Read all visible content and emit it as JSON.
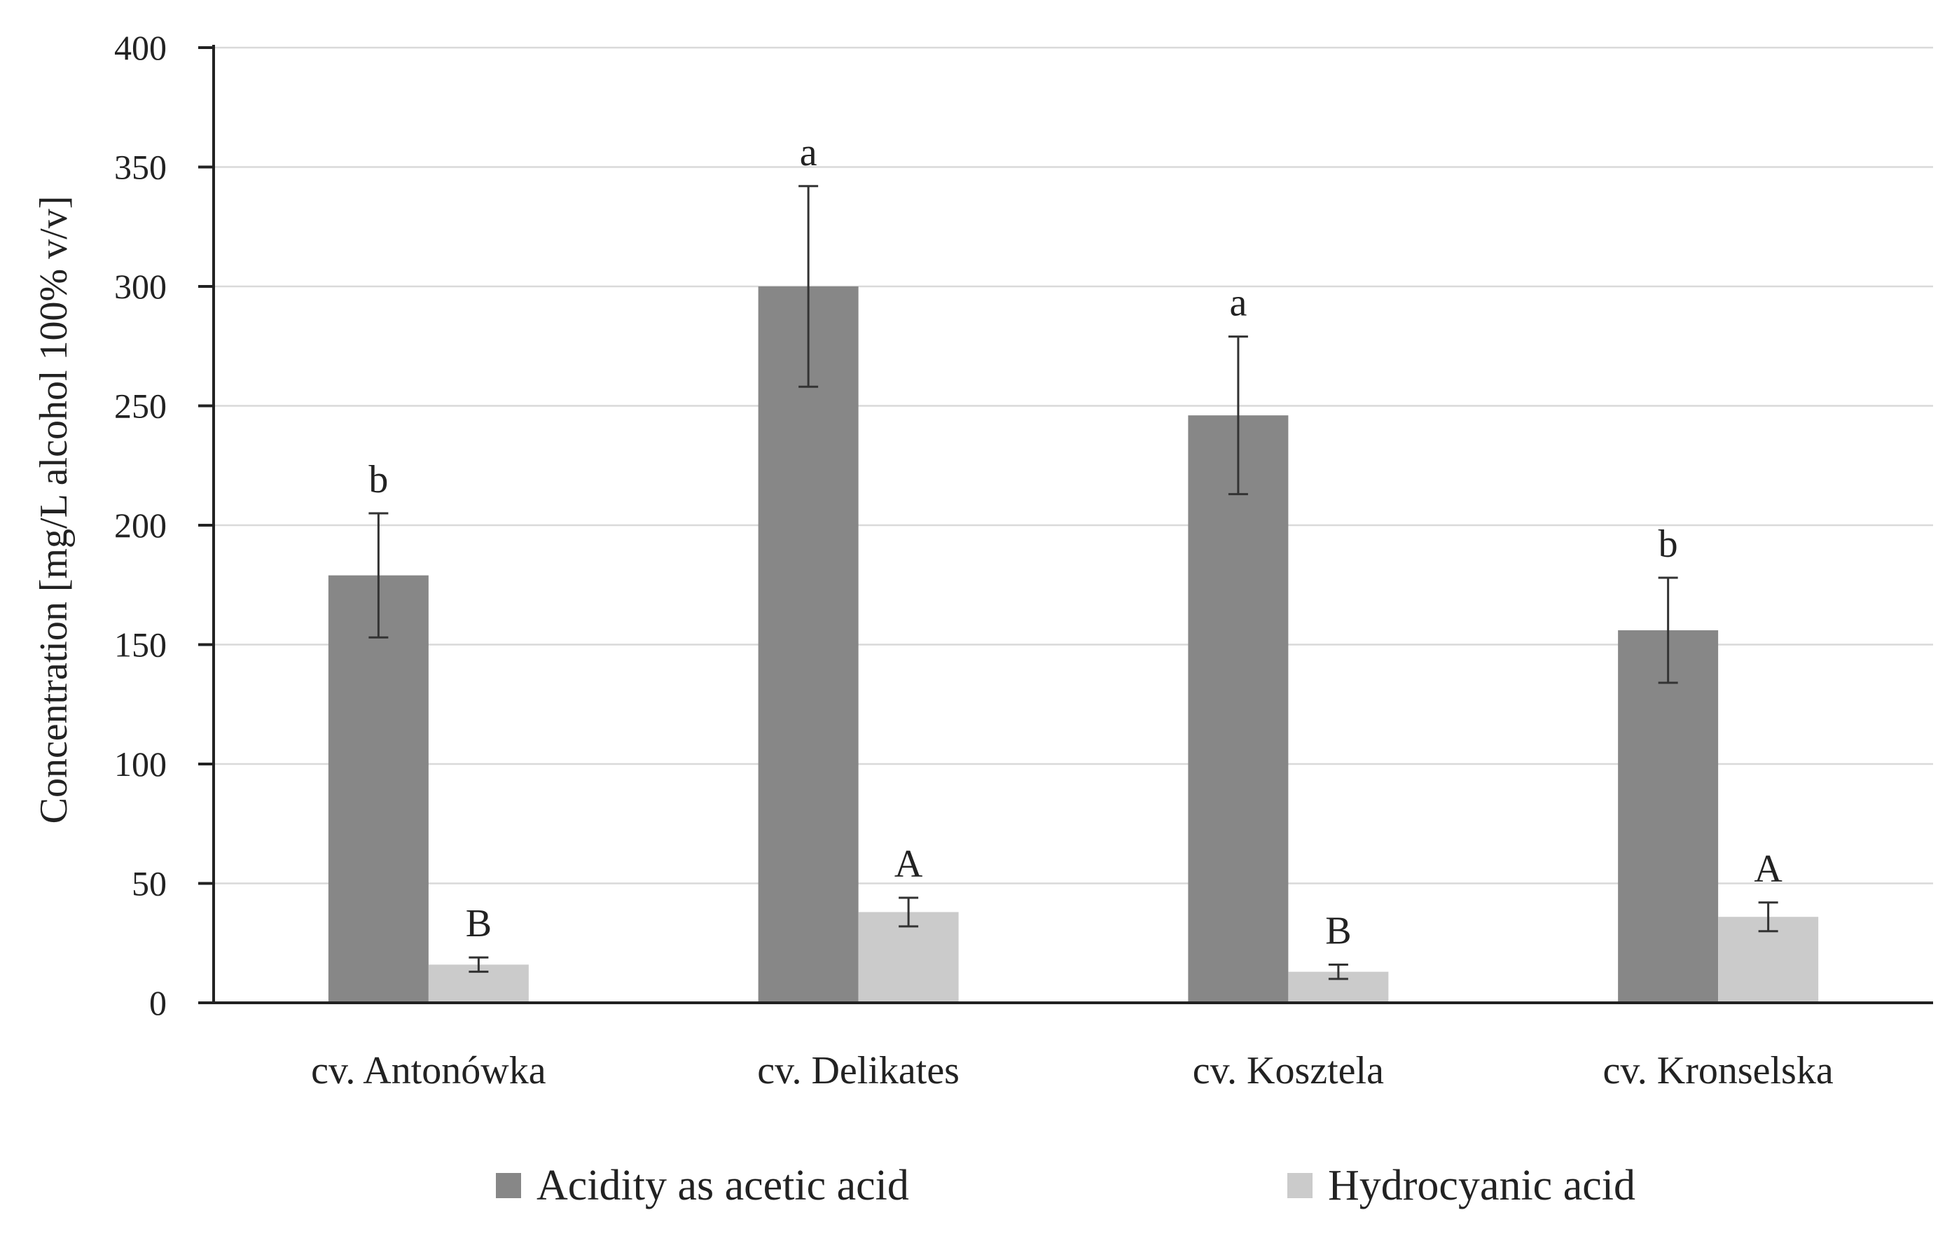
{
  "chart_data": {
    "type": "bar",
    "title": "",
    "xlabel": "",
    "ylabel": "Concentration  [mg/L alcohol 100% v/v]",
    "ylim": [
      0,
      400
    ],
    "yticks": [
      0,
      50,
      100,
      150,
      200,
      250,
      300,
      350,
      400
    ],
    "grid": true,
    "legend_position": "bottom",
    "categories": [
      "cv. Antonówka",
      "cv. Delikates",
      "cv. Kosztela",
      "cv. Kronselska"
    ],
    "series": [
      {
        "name": "Acidity as acetic acid",
        "color": "#878787",
        "values": [
          179,
          300,
          246,
          156
        ],
        "errors": [
          26,
          42,
          33,
          22
        ],
        "letters": [
          "b",
          "a",
          "a",
          "b"
        ]
      },
      {
        "name": "Hydrocyanic acid",
        "color": "#cbcbcb",
        "values": [
          16,
          38,
          13,
          36
        ],
        "errors": [
          3,
          6,
          3,
          6
        ],
        "letters": [
          "B",
          "A",
          "B",
          "A"
        ]
      }
    ]
  }
}
